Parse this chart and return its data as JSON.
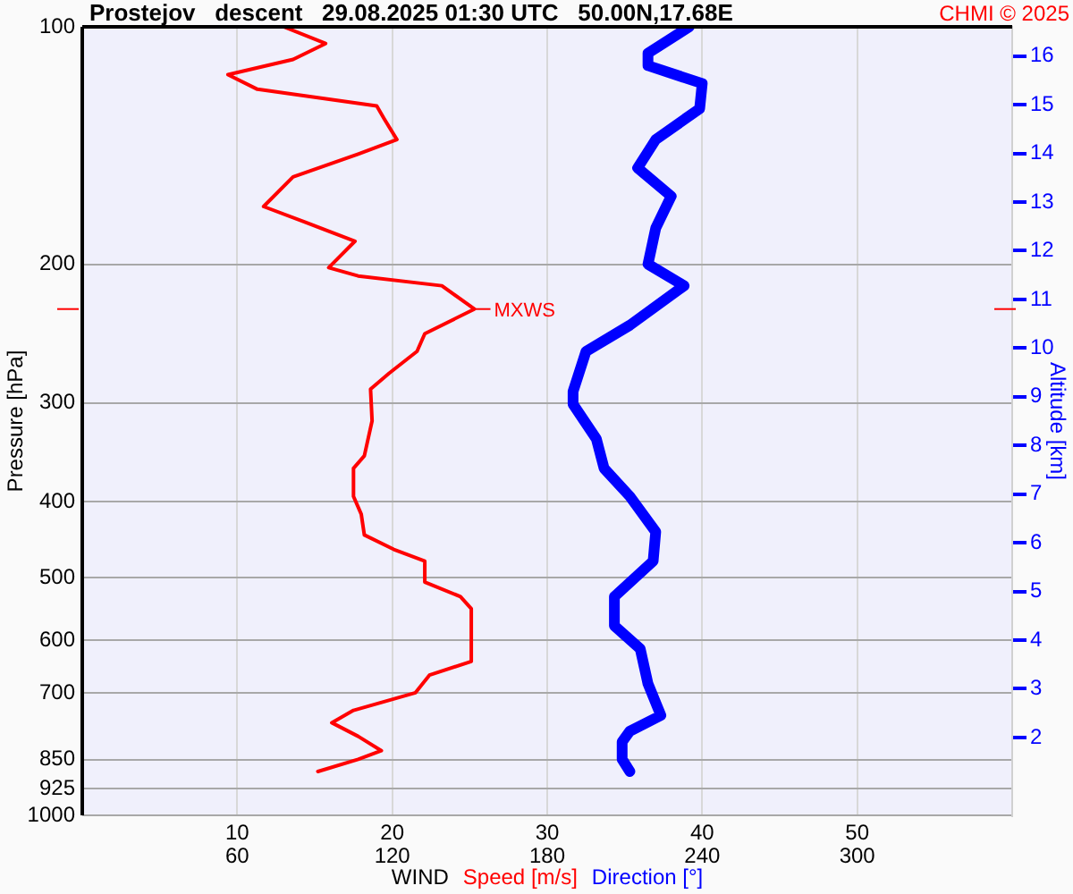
{
  "chart_data": {
    "type": "line",
    "title": "Prostejov   descent   29.08.2025 01:30 UTC   50.00N,17.68E",
    "xlabel": "WIND",
    "ylabel": "Pressure [hPa]",
    "y2label": "Altitude [km]",
    "annotations": [
      "CHMI © 2025",
      {
        "text": "MXWS",
        "x": 25.3,
        "y": 228
      }
    ],
    "log": "y",
    "grid": true,
    "legend": false,
    "marker": "none",
    "line_style": "solid",
    "xlim": [
      0,
      60
    ],
    "xticks": [
      10,
      20,
      30,
      40,
      50
    ],
    "x2lim": [
      0,
      360
    ],
    "x2ticks": [
      60,
      120,
      180,
      240,
      300
    ],
    "ylim": [
      1000,
      100
    ],
    "yticks": [
      100,
      200,
      300,
      400,
      500,
      600,
      700,
      850,
      925,
      1000
    ],
    "y2lim": [
      0.4,
      16.6
    ],
    "y2ticks": [
      2,
      3,
      4,
      5,
      6,
      7,
      8,
      9,
      10,
      11,
      12,
      13,
      14,
      15,
      16
    ],
    "series": [
      {
        "name": "Speed [m/s]",
        "color": "#ff0000",
        "x": [
          13.0,
          15.7,
          13.6,
          9.4,
          11.3,
          19.0,
          19.5,
          20.3,
          17.8,
          13.6,
          11.7,
          14.4,
          17.6,
          15.9,
          17.8,
          23.2,
          25.3,
          22.1,
          21.6,
          19.8,
          18.6,
          18.7,
          18.2,
          17.5,
          17.5,
          18.0,
          18.2,
          20.1,
          22.1,
          22.1,
          24.4,
          25.1,
          25.1,
          22.4,
          21.5,
          17.5,
          16.1,
          17.8,
          19.3,
          17.8,
          15.2
        ],
        "values": [
          100,
          105,
          110,
          115,
          120,
          126,
          131,
          139,
          145,
          155,
          169,
          177,
          187,
          202,
          207,
          213,
          228,
          245,
          258,
          275,
          288,
          316,
          350,
          363,
          394,
          415,
          441,
          460,
          476,
          506,
          528,
          547,
          638,
          664,
          699,
          736,
          763,
          794,
          828,
          849,
          880
        ]
      },
      {
        "name": "Direction [°]",
        "color": "#0000ff",
        "axis": "x2",
        "x": [
          235,
          219,
          219,
          240,
          239,
          222,
          215,
          228,
          222,
          219,
          233,
          212,
          195,
          190,
          190,
          199,
          202,
          212,
          222,
          221,
          206,
          206,
          216,
          219,
          224,
          212,
          209,
          209,
          212
        ],
        "values": [
          100,
          108,
          112,
          118,
          127,
          139,
          151,
          164,
          180,
          200,
          213,
          239,
          258,
          290,
          301,
          333,
          363,
          394,
          437,
          476,
          528,
          575,
          615,
          681,
          747,
          782,
          807,
          849,
          880
        ]
      }
    ]
  }
}
